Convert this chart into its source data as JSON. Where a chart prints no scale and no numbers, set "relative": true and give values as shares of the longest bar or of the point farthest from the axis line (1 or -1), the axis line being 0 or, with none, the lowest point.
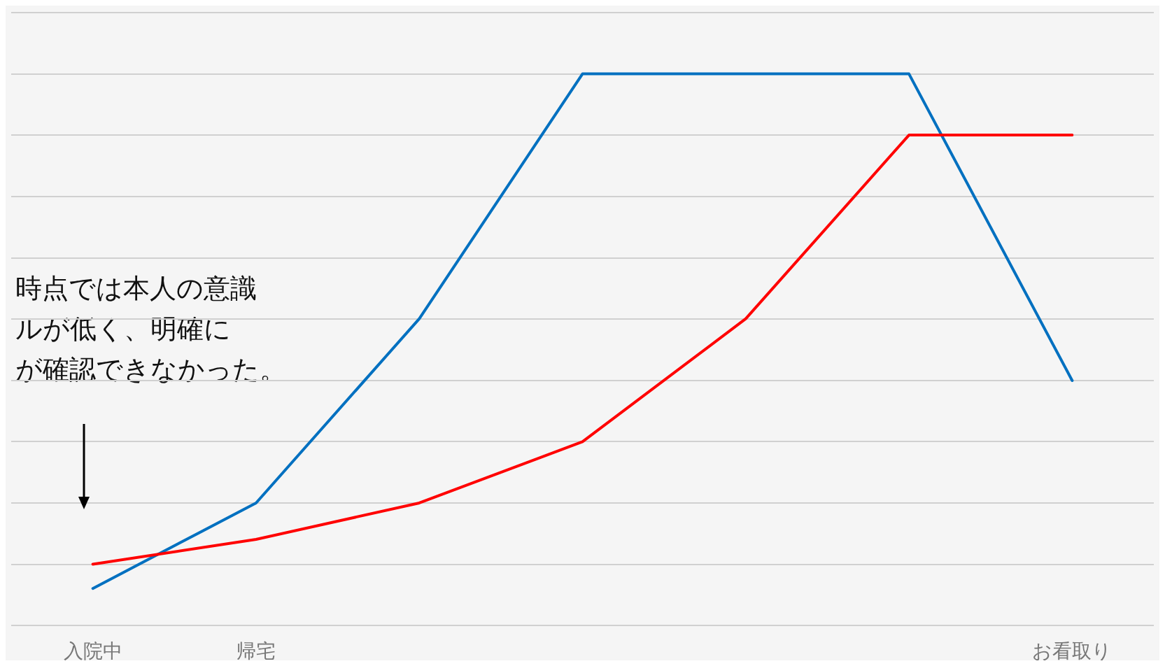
{
  "chart_data": {
    "type": "line",
    "relative": true,
    "categories": [
      "入院中",
      "帰宅",
      null,
      null,
      null,
      null,
      "お看取り"
    ],
    "series": [
      {
        "color": "#0070c0",
        "values": [
          0.067,
          0.222,
          0.556,
          1,
          1,
          1,
          0.444
        ]
      },
      {
        "color": "#ff0000",
        "values": [
          0.111,
          0.156,
          0.222,
          0.333,
          0.556,
          0.889,
          0.889
        ]
      }
    ],
    "annotations": [
      "時点では本人の意識",
      "ルが低く、明確に",
      "が確認できなかった。"
    ],
    "grid": "y",
    "marker": "none",
    "line_style": "solid"
  }
}
